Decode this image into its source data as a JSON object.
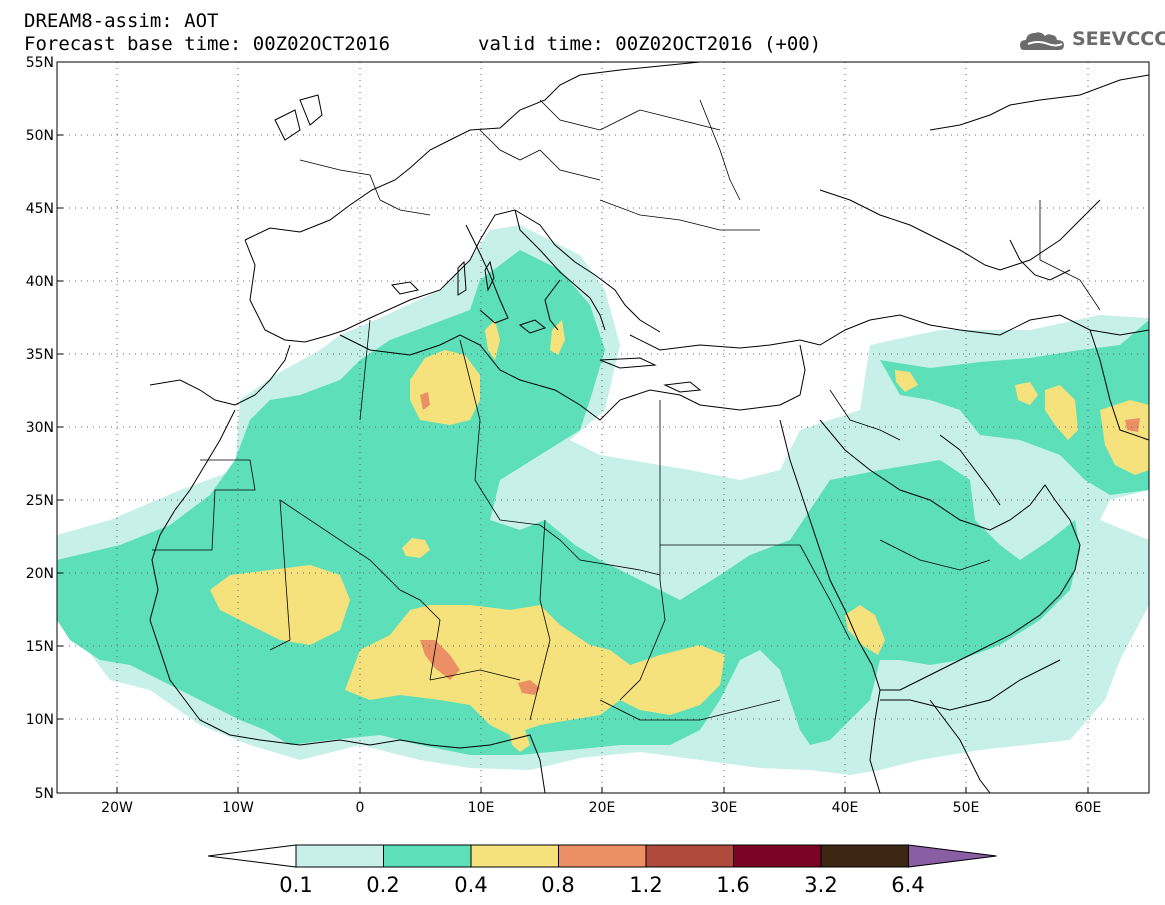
{
  "header": {
    "title": "DREAM8-assim: AOT",
    "base_time": "Forecast base time: 00Z02OCT2016",
    "valid_time": "valid time: 00Z02OCT2016 (+00)",
    "logo": "SEEVCCC"
  },
  "map": {
    "lat_labels": [
      "55N",
      "50N",
      "45N",
      "40N",
      "35N",
      "30N",
      "25N",
      "20N",
      "15N",
      "10N",
      "5N"
    ],
    "lon_labels": [
      "20W",
      "10W",
      "0",
      "10E",
      "20E",
      "30E",
      "40E",
      "50E",
      "60E"
    ],
    "lon_range": [
      -25,
      65
    ],
    "lat_range": [
      5,
      55
    ],
    "grid": "dotted"
  },
  "legend": {
    "labels": [
      "0.1",
      "0.2",
      "0.4",
      "0.8",
      "1.2",
      "1.6",
      "3.2",
      "6.4"
    ],
    "colors": [
      "#ffffff",
      "#c6f0e8",
      "#5ddfb9",
      "#f6e27c",
      "#eb9064",
      "#b04a3d",
      "#7b0426",
      "#3d2613",
      "#8a5ea3"
    ]
  }
}
